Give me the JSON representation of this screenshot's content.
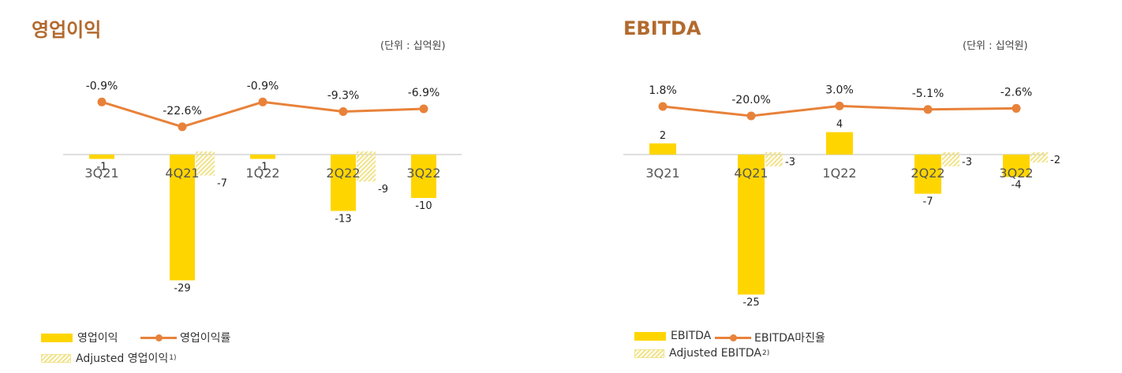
{
  "charts": {
    "left": {
      "title": "영업이익",
      "unit": "(단위 : 십억원)",
      "legend": {
        "bar": "영업이익",
        "line": "영업이익률",
        "hatch": "Adjusted 영업이익",
        "hatch_note": "1)"
      }
    },
    "right": {
      "title": "EBITDA",
      "unit": "(단위 : 십억원)",
      "legend": {
        "bar": "EBITDA",
        "line": "EBITDA마진율",
        "hatch": "Adjusted EBITDA",
        "hatch_note": "2)"
      }
    }
  },
  "colors": {
    "title": "#b26a2e",
    "bar": "#ffd500",
    "hatch": "#f1e38a",
    "line": "#e8823a",
    "axis": "#bfbfbf"
  },
  "chart_data": [
    {
      "type": "bar",
      "title": "영업이익",
      "categories": [
        "3Q21",
        "4Q21",
        "1Q22",
        "2Q22",
        "3Q22"
      ],
      "series": [
        {
          "name": "영업이익",
          "type": "bar",
          "values": [
            -1,
            -29,
            -1,
            -13,
            -10
          ],
          "labels": [
            "-1",
            "-29",
            "-1",
            "-13",
            "-10"
          ]
        },
        {
          "name": "Adjusted 영업이익",
          "type": "bar",
          "values": [
            null,
            -7,
            null,
            -9,
            null
          ],
          "labels": [
            "",
            "-7",
            "",
            "-9",
            ""
          ]
        },
        {
          "name": "영업이익률",
          "type": "line",
          "values": [
            -0.9,
            -22.6,
            -0.9,
            -9.3,
            -6.9
          ],
          "labels": [
            "-0.9%",
            "-22.6%",
            "-0.9%",
            "-9.3%",
            "-6.9%"
          ]
        }
      ]
    },
    {
      "type": "bar",
      "title": "EBITDA",
      "categories": [
        "3Q21",
        "4Q21",
        "1Q22",
        "2Q22",
        "3Q22"
      ],
      "series": [
        {
          "name": "EBITDA",
          "type": "bar",
          "values": [
            2,
            -25,
            4,
            -7,
            -4
          ],
          "labels": [
            "2",
            "-25",
            "4",
            "-7",
            "-4"
          ]
        },
        {
          "name": "Adjusted EBITDA",
          "type": "bar",
          "values": [
            null,
            -3,
            null,
            -3,
            -2
          ],
          "labels": [
            "",
            "-3",
            "",
            "-3",
            "-2"
          ]
        },
        {
          "name": "EBITDA마진율",
          "type": "line",
          "values": [
            1.8,
            -20.0,
            3.0,
            -5.1,
            -2.6
          ],
          "labels": [
            "1.8%",
            "-20.0%",
            "3.0%",
            "-5.1%",
            "-2.6%"
          ]
        }
      ]
    }
  ]
}
